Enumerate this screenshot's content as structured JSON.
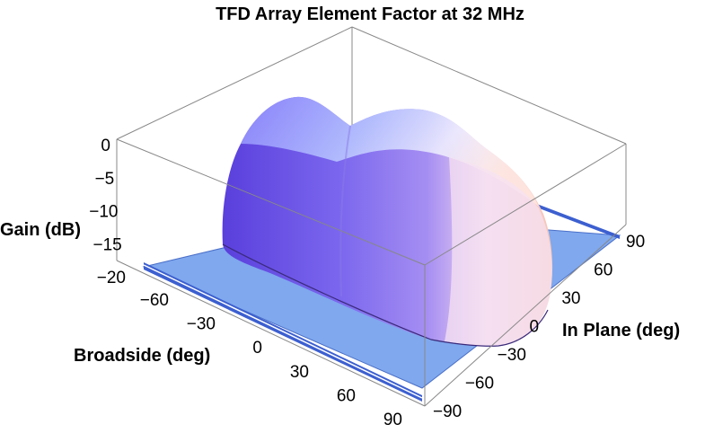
{
  "chart_data": {
    "type": "surface3d",
    "title": "TFD Array Element Factor at 32 MHz",
    "xlabel": "Broadside (deg)",
    "ylabel": "In Plane (deg)",
    "zlabel": "Gain (dB)",
    "x_ticks": [
      "−60",
      "−30",
      "0",
      "30",
      "60",
      "90"
    ],
    "y_ticks": [
      "−90",
      "−60",
      "−30",
      "0",
      "30",
      "60",
      "90"
    ],
    "z_ticks": [
      "−20",
      "−15",
      "−10",
      "−5",
      "0"
    ],
    "xlim": [
      -90,
      90
    ],
    "ylim": [
      -90,
      90
    ],
    "zlim": [
      -20,
      0
    ],
    "surface_color_low": "#6b3fd6",
    "surface_color_high": "#fff0f8",
    "floor_color": "#7fa8ee"
  }
}
